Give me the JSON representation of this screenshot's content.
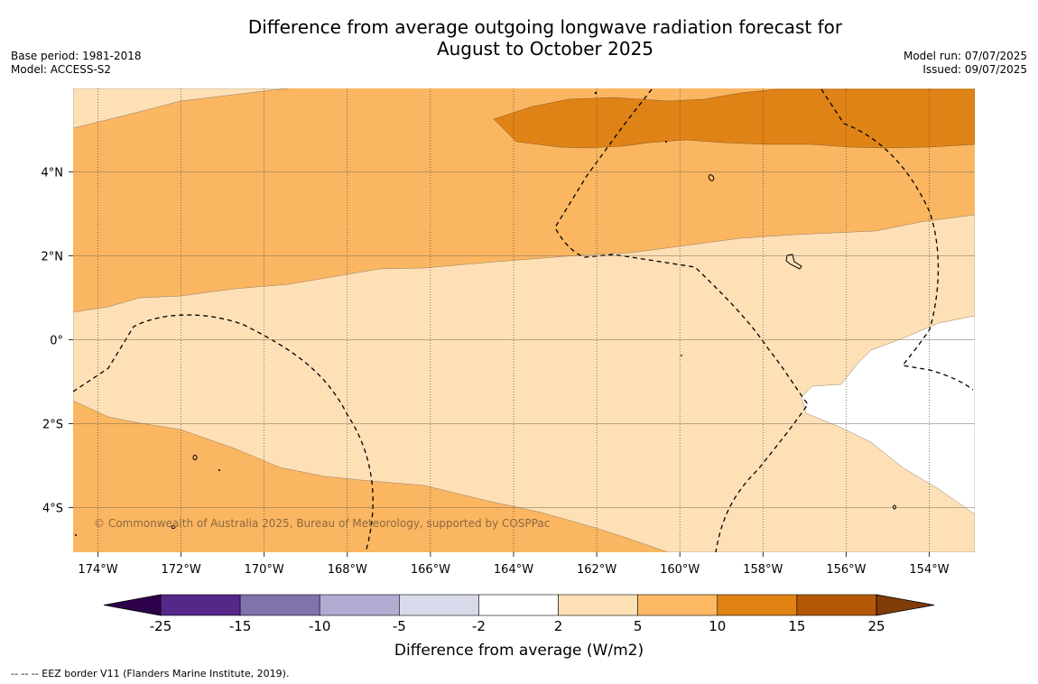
{
  "header": {
    "title_line1": "Difference from average outgoing longwave radiation forecast for",
    "title_line2": "August to October 2025",
    "base_period": "Base period: 1981-2018",
    "model": "Model: ACCESS-S2",
    "model_run": "Model run: 07/07/2025",
    "issued": "Issued: 09/07/2025"
  },
  "map": {
    "x_ticks": [
      "174°W",
      "172°W",
      "170°W",
      "168°W",
      "166°W",
      "164°W",
      "162°W",
      "160°W",
      "158°W",
      "156°W",
      "154°W"
    ],
    "y_ticks": [
      "4°N",
      "2°N",
      "0°",
      "2°S",
      "4°S"
    ],
    "copyright": "© Commonwealth of Australia 2025, Bureau of Meteorology, supported by COSPPac",
    "colors": {
      "band_2_5": "#fde0b6",
      "band_5_10": "#fbb662",
      "band_10_15": "#e08317",
      "band_neutral": "#ffffff"
    }
  },
  "colorbar": {
    "label": "Difference from average (W/m2)",
    "ticks": [
      "-25",
      "-15",
      "-10",
      "-5",
      "-2",
      "2",
      "5",
      "10",
      "15",
      "25"
    ],
    "colors": [
      "#2d004b",
      "#542788",
      "#8073ac",
      "#b2abd2",
      "#d8daeb",
      "#ffffff",
      "#fee0b6",
      "#fdb863",
      "#e08214",
      "#b35806",
      "#7f3b08"
    ]
  },
  "footer": {
    "eez_note": "--  --  -- EEZ border V11 (Flanders Marine Institute, 2019)."
  }
}
